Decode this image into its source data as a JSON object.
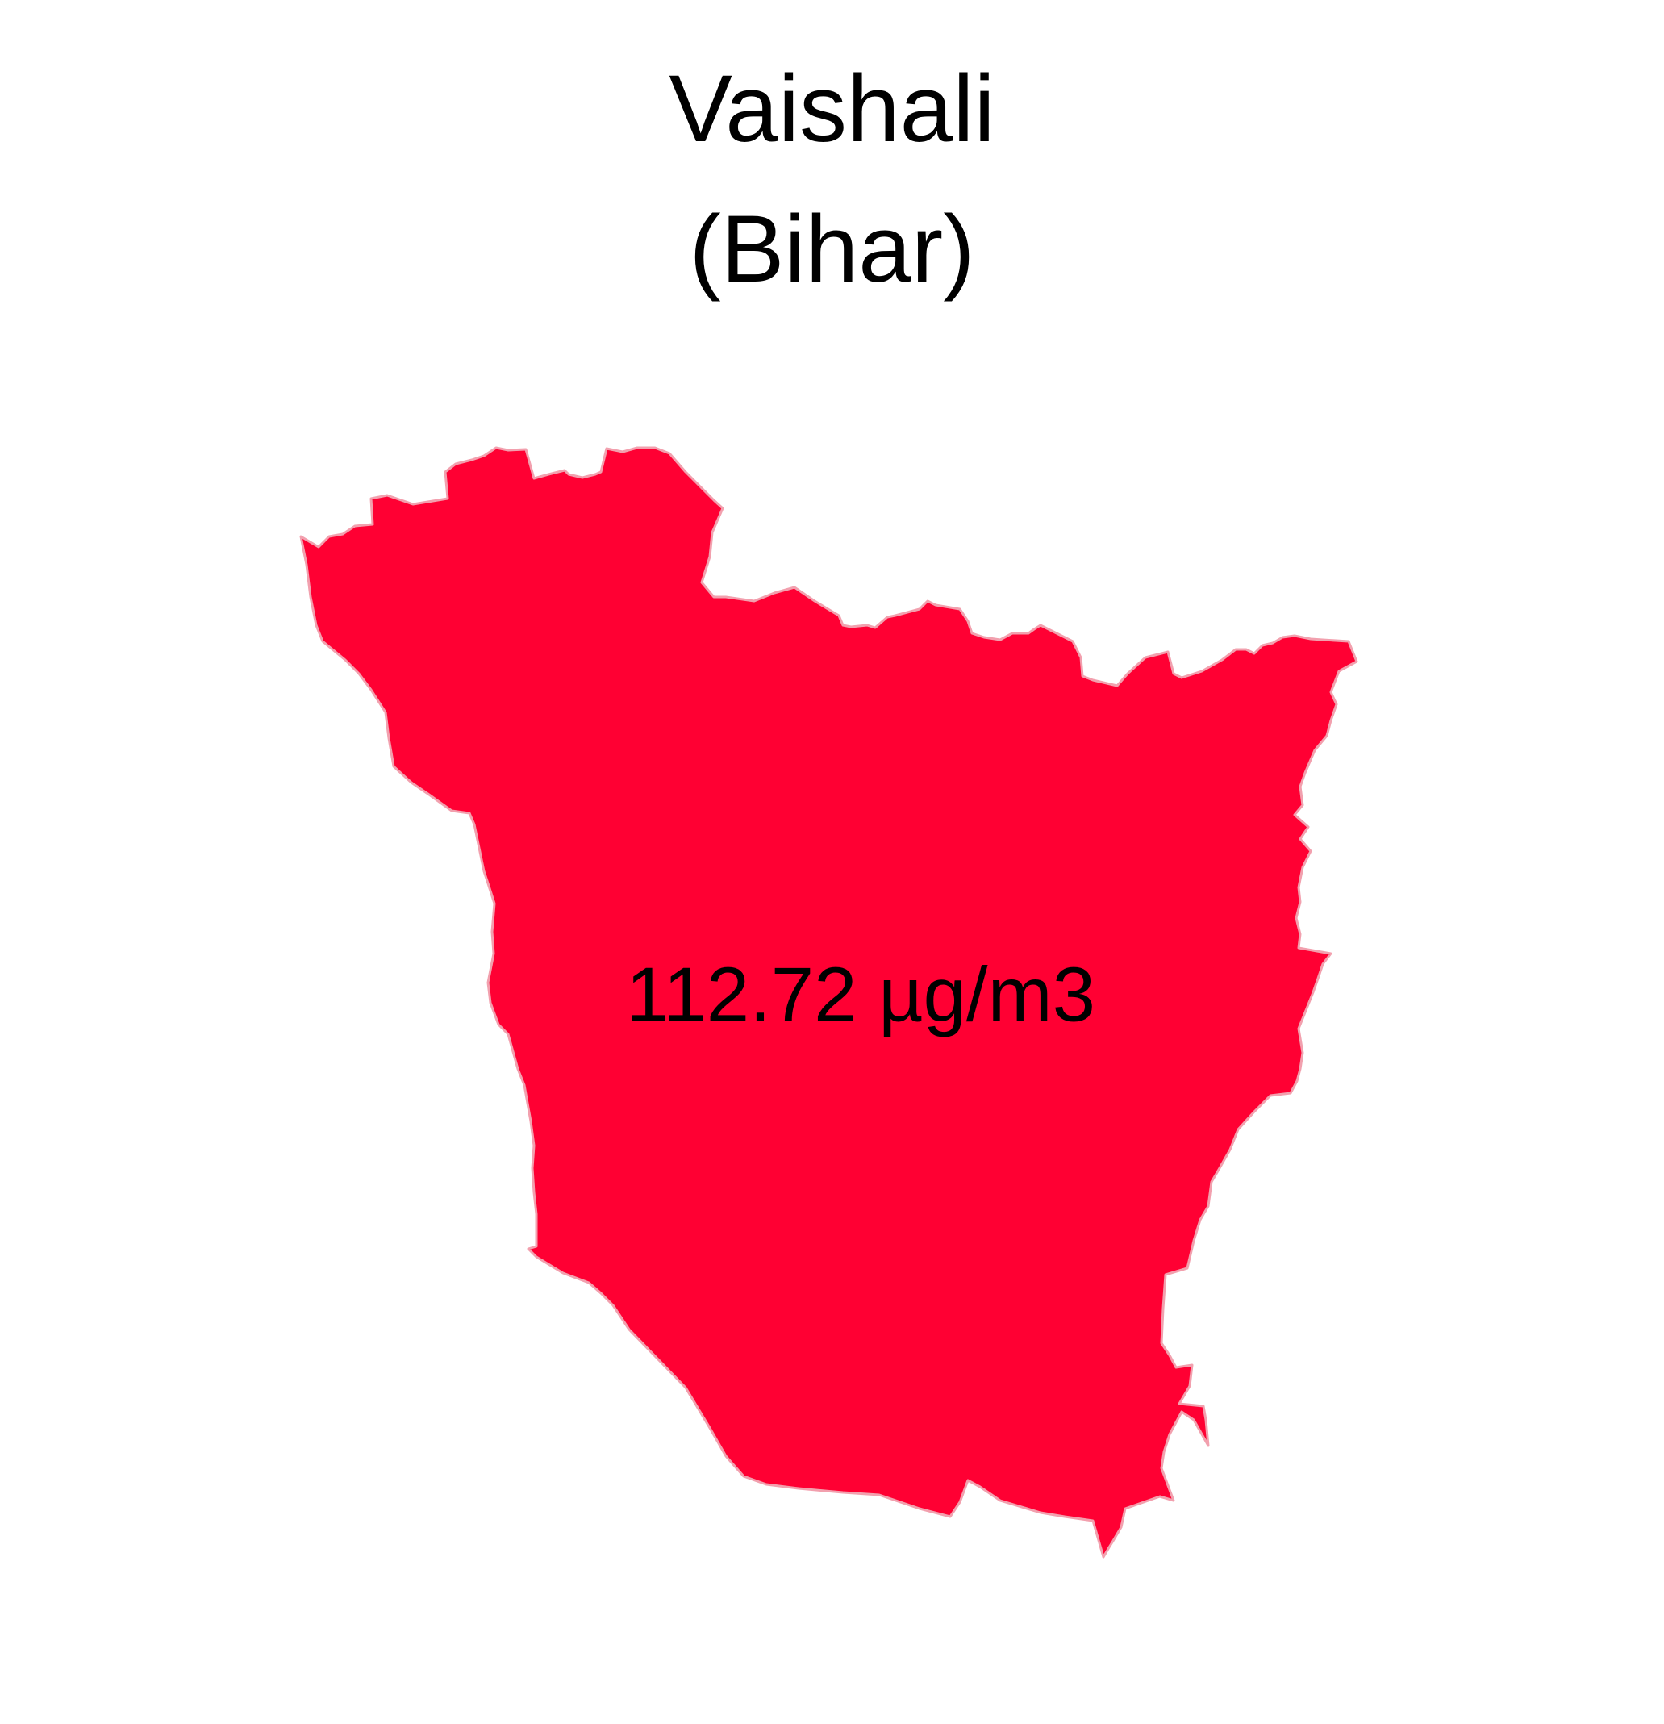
{
  "title": {
    "district": "Vaishali",
    "state": "(Bihar)"
  },
  "region": {
    "value_label": "112.72 µg/m3",
    "fill_color": "#FF0033",
    "border_color": "#F2A0AE"
  }
}
